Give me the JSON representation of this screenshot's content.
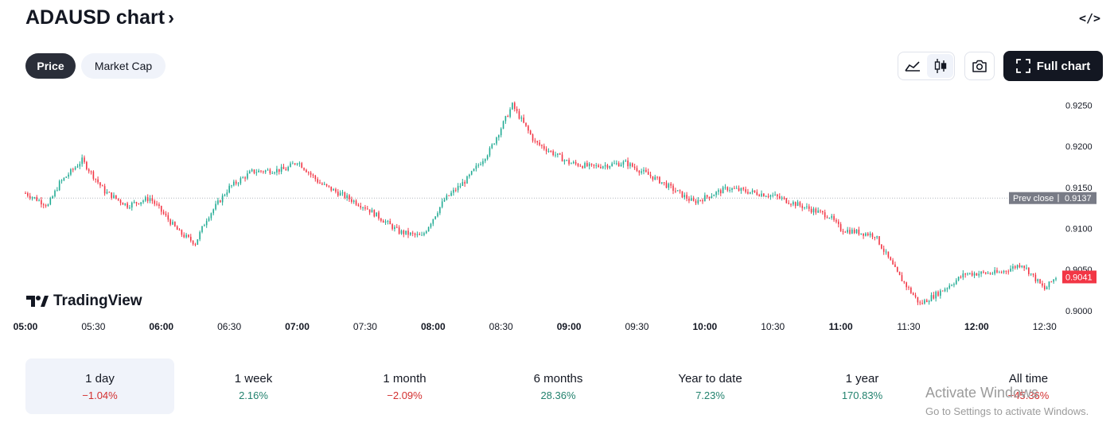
{
  "header": {
    "title": "ADAUSD chart",
    "chevron": "›",
    "embed_icon_label": "</>"
  },
  "tabs": [
    {
      "label": "Price",
      "active": true
    },
    {
      "label": "Market Cap",
      "active": false
    }
  ],
  "toolbar": {
    "line_chart_icon": "area-chart-icon",
    "candle_chart_icon": "candlestick-icon",
    "camera_icon": "camera-icon",
    "full_chart_label": "Full chart"
  },
  "colors": {
    "up": "#22ab94",
    "down": "#f23645",
    "prev_close_bg": "#787b86",
    "last_price_bg": "#f23645"
  },
  "chart_data": {
    "type": "candlestick",
    "symbol": "ADAUSD",
    "y_ticks": [
      "0.9250",
      "0.9200",
      "0.9150",
      "0.9100",
      "0.9050",
      "0.9000"
    ],
    "ylim": [
      0.8995,
      0.9262
    ],
    "x_ticks": [
      {
        "label": "05:00",
        "bold": true
      },
      {
        "label": "05:30",
        "bold": false
      },
      {
        "label": "06:00",
        "bold": true
      },
      {
        "label": "06:30",
        "bold": false
      },
      {
        "label": "07:00",
        "bold": true
      },
      {
        "label": "07:30",
        "bold": false
      },
      {
        "label": "08:00",
        "bold": true
      },
      {
        "label": "08:30",
        "bold": false
      },
      {
        "label": "09:00",
        "bold": true
      },
      {
        "label": "09:30",
        "bold": false
      },
      {
        "label": "10:00",
        "bold": true
      },
      {
        "label": "10:30",
        "bold": false
      },
      {
        "label": "11:00",
        "bold": true
      },
      {
        "label": "11:30",
        "bold": false
      },
      {
        "label": "12:00",
        "bold": true
      },
      {
        "label": "12:30",
        "bold": false
      }
    ],
    "prev_close": {
      "label": "Prev close",
      "value": "0.9137"
    },
    "last_price": {
      "value": "0.9041"
    },
    "price_path": [
      [
        "05:00",
        0.9143
      ],
      [
        "05:10",
        0.9128
      ],
      [
        "05:15",
        0.9155
      ],
      [
        "05:25",
        0.9183
      ],
      [
        "05:35",
        0.9145
      ],
      [
        "05:45",
        0.9128
      ],
      [
        "05:55",
        0.9137
      ],
      [
        "06:08",
        0.9095
      ],
      [
        "06:15",
        0.9082
      ],
      [
        "06:20",
        0.9112
      ],
      [
        "06:30",
        0.915
      ],
      [
        "06:40",
        0.9169
      ],
      [
        "06:55",
        0.9172
      ],
      [
        "07:00",
        0.9182
      ],
      [
        "07:10",
        0.9155
      ],
      [
        "07:30",
        0.9126
      ],
      [
        "07:45",
        0.9096
      ],
      [
        "07:55",
        0.909
      ],
      [
        "08:05",
        0.9135
      ],
      [
        "08:15",
        0.916
      ],
      [
        "08:25",
        0.9195
      ],
      [
        "08:35",
        0.925
      ],
      [
        "08:45",
        0.9205
      ],
      [
        "09:00",
        0.918
      ],
      [
        "09:10",
        0.9175
      ],
      [
        "09:25",
        0.918
      ],
      [
        "09:40",
        0.9158
      ],
      [
        "09:55",
        0.9132
      ],
      [
        "10:10",
        0.9149
      ],
      [
        "10:30",
        0.914
      ],
      [
        "10:55",
        0.9115
      ],
      [
        "11:00",
        0.9099
      ],
      [
        "11:15",
        0.9092
      ],
      [
        "11:25",
        0.9045
      ],
      [
        "11:35",
        0.9008
      ],
      [
        "11:45",
        0.9025
      ],
      [
        "11:55",
        0.9045
      ],
      [
        "12:10",
        0.9046
      ],
      [
        "12:20",
        0.9057
      ],
      [
        "12:30",
        0.9026
      ],
      [
        "12:35",
        0.9041
      ]
    ]
  },
  "branding": {
    "logo_text": "TradingView"
  },
  "periods": [
    {
      "label": "1 day",
      "change": "−1.04%",
      "sign": "neg",
      "active": true
    },
    {
      "label": "1 week",
      "change": "2.16%",
      "sign": "pos",
      "active": false
    },
    {
      "label": "1 month",
      "change": "−2.09%",
      "sign": "neg",
      "active": false
    },
    {
      "label": "6 months",
      "change": "28.36%",
      "sign": "pos",
      "active": false
    },
    {
      "label": "Year to date",
      "change": "7.23%",
      "sign": "pos",
      "active": false
    },
    {
      "label": "1 year",
      "change": "170.83%",
      "sign": "pos",
      "active": false
    },
    {
      "label": "All time",
      "change": "−45.36%",
      "sign": "neg",
      "active": false
    }
  ],
  "watermark": {
    "line1": "Activate Windows",
    "line2": "Go to Settings to activate Windows."
  }
}
